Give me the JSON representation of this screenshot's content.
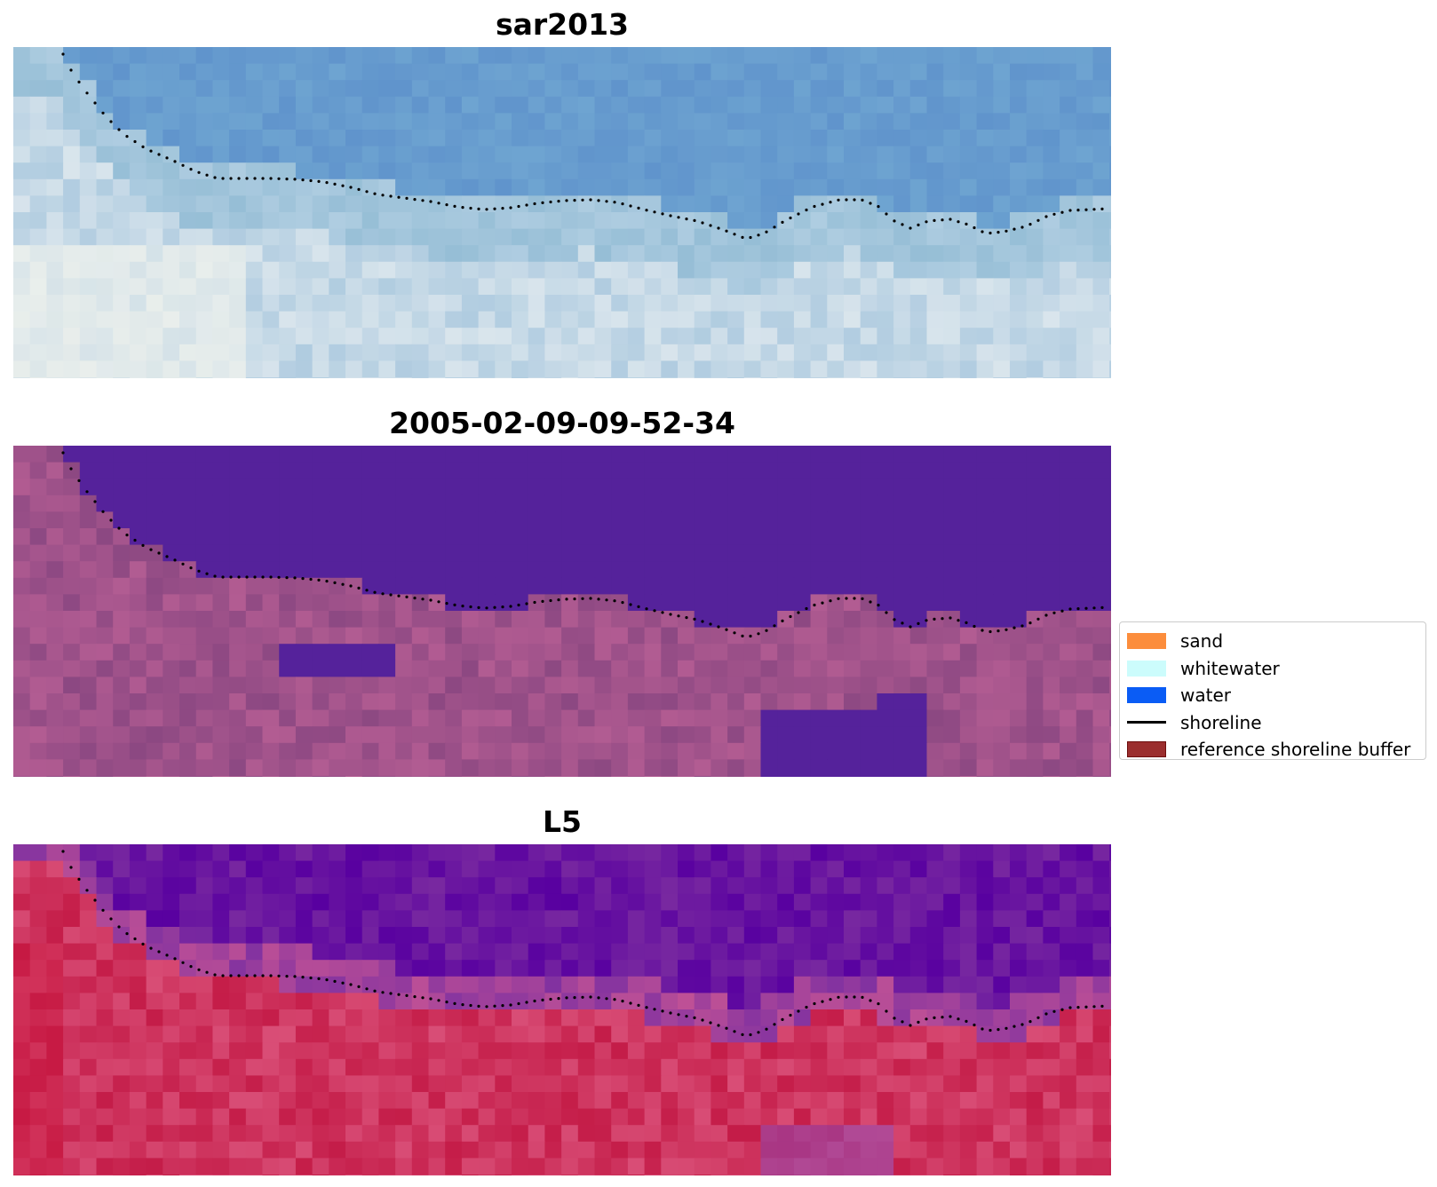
{
  "panels": [
    {
      "title": "sar2013",
      "palette": "sar"
    },
    {
      "title": "2005-02-09-09-52-34",
      "palette": "classified"
    },
    {
      "title": "L5",
      "palette": "l5"
    }
  ],
  "legend": {
    "items": [
      {
        "label": "sand",
        "color": "#fc8d3c",
        "kind": "patch"
      },
      {
        "label": "whitewater",
        "color": "#ccfcfc",
        "kind": "patch"
      },
      {
        "label": "water",
        "color": "#0a5cf5",
        "kind": "patch"
      },
      {
        "label": "shoreline",
        "color": "#000000",
        "kind": "line"
      },
      {
        "label": "reference shoreline buffer",
        "color": "#9b2e2e",
        "edge": "#6e0e0e",
        "kind": "patch"
      }
    ]
  },
  "colors": {
    "water_class": "#55229b",
    "land_class": "#9a4f88",
    "shoreline_dots": "#000000"
  }
}
